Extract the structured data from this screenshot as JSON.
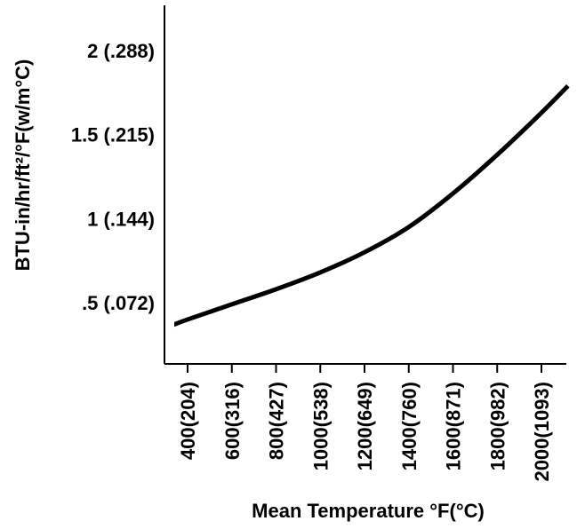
{
  "chart_data": {
    "type": "line",
    "title": "",
    "xlabel": "Mean Temperature °F(°C)",
    "ylabel": "BTU-in/hr/ft²/°F(w/m°C)",
    "x_ticks": [
      {
        "value": 400,
        "label": "400(204)"
      },
      {
        "value": 600,
        "label": "600(316)"
      },
      {
        "value": 800,
        "label": "800(427)"
      },
      {
        "value": 1000,
        "label": "1000(538)"
      },
      {
        "value": 1200,
        "label": "1200(649)"
      },
      {
        "value": 1400,
        "label": "1400(760)"
      },
      {
        "value": 1600,
        "label": "1600(871)"
      },
      {
        "value": 1800,
        "label": "1800(982)"
      },
      {
        "value": 2000,
        "label": "2000(1093)"
      }
    ],
    "y_ticks": [
      {
        "value": 0.5,
        "label": ".5 (.072)"
      },
      {
        "value": 1,
        "label": "1 (.144)"
      },
      {
        "value": 1.5,
        "label": "1.5 (.215)"
      },
      {
        "value": 2,
        "label": "2 (.288)"
      }
    ],
    "xlim": [
      350,
      2120
    ],
    "ylim": [
      0.35,
      2.35
    ],
    "grid": false,
    "series": [
      {
        "color": "#000000",
        "x": [
          300,
          400,
          600,
          800,
          1000,
          1200,
          1400,
          1600,
          1800,
          2000,
          2120
        ],
        "y": [
          0.35,
          0.4,
          0.49,
          0.58,
          0.68,
          0.8,
          0.95,
          1.15,
          1.38,
          1.63,
          1.79
        ]
      }
    ]
  }
}
